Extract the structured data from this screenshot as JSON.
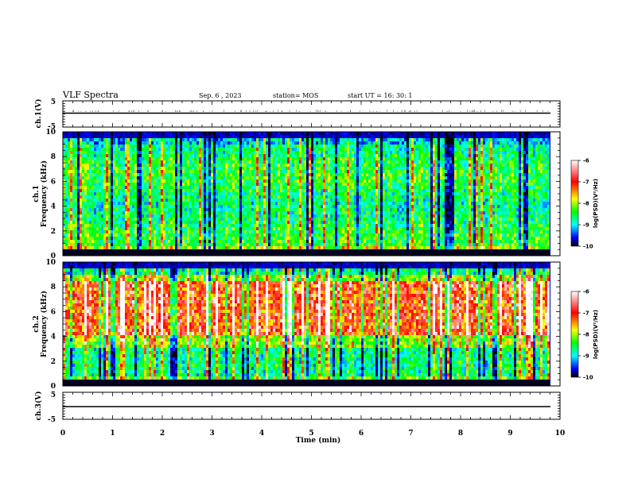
{
  "header": {
    "title": "VLF Spectra",
    "date": "Sep. 6 , 2023",
    "station": "station= MOS",
    "start": "start  UT =   16: 30: 1"
  },
  "chart_data": {
    "type": "heatmap",
    "xlabel": "Time  (min)",
    "xlim": [
      0,
      10
    ],
    "x_ticks": [
      "0",
      "1",
      "2",
      "3",
      "4",
      "5",
      "6",
      "7",
      "8",
      "9",
      "10"
    ],
    "data_end_min": 9.8,
    "panels": [
      {
        "name": "ch1-voltage",
        "kind": "waveform",
        "ylabel": "ch.1(V)",
        "ylim": [
          -5,
          5
        ],
        "y_ticks": [
          "5",
          "-5"
        ],
        "level": 0
      },
      {
        "name": "ch1-spectrogram",
        "kind": "spectrogram",
        "ylabel": "ch.1 Frequency (kHz)",
        "ylabel_lines": [
          "ch.1",
          "Frequency (kHz)"
        ],
        "ylim": [
          0,
          10
        ],
        "y_ticks": [
          "0",
          "2",
          "4",
          "6",
          "8",
          "10"
        ],
        "colorbar_label": "log(PSD)(V²/Hz)",
        "colorbar_range": [
          -10,
          -6
        ],
        "colorbar_ticks": [
          "-6",
          "-7",
          "-8",
          "-9",
          "-10"
        ]
      },
      {
        "name": "ch2-spectrogram",
        "kind": "spectrogram",
        "ylabel": "ch.2 Frequency (kHz)",
        "ylabel_lines": [
          "ch.2",
          "Frequency (kHz)"
        ],
        "ylim": [
          0,
          10
        ],
        "y_ticks": [
          "0",
          "2",
          "4",
          "6",
          "8",
          "10"
        ],
        "colorbar_label": "log(PSD)(V²/Hz)",
        "colorbar_range": [
          -10,
          -6
        ],
        "colorbar_ticks": [
          "-6",
          "-7",
          "-8",
          "-9",
          "-10"
        ]
      },
      {
        "name": "ch3-voltage",
        "kind": "waveform",
        "ylabel": "ch.3(V)",
        "ylim": [
          -5,
          5
        ],
        "y_ticks": [
          "5",
          "-5"
        ],
        "level": 0
      }
    ]
  },
  "colors": {
    "colormap": [
      "#ffffff",
      "#ff0000",
      "#ffff00",
      "#00ff00",
      "#00ffff",
      "#0000ff",
      "#000000"
    ]
  }
}
